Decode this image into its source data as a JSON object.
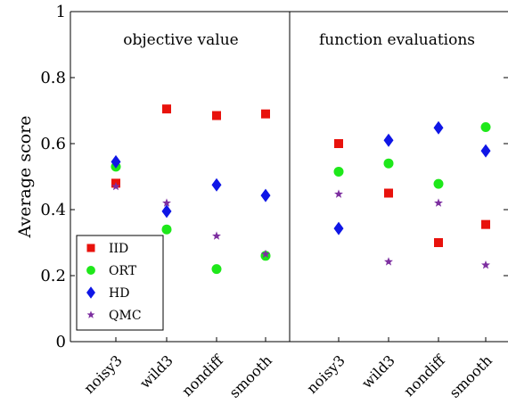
{
  "chart_data": {
    "type": "scatter",
    "ylabel": "Average score",
    "ylim": [
      0,
      1
    ],
    "yticks": [
      "0",
      "0.2",
      "0.4",
      "0.6",
      "0.8",
      "1"
    ],
    "panels": [
      {
        "title": "objective value",
        "categories": [
          "noisy3",
          "wild3",
          "nondiff",
          "smooth"
        ],
        "series": [
          {
            "name": "IID",
            "values": [
              0.48,
              0.705,
              0.685,
              0.69
            ]
          },
          {
            "name": "ORT",
            "values": [
              0.53,
              0.34,
              0.22,
              0.26
            ]
          },
          {
            "name": "HD",
            "values": [
              0.545,
              0.395,
              0.475,
              0.443
            ]
          },
          {
            "name": "QMC",
            "values": [
              0.47,
              0.42,
              0.32,
              0.265
            ]
          }
        ]
      },
      {
        "title": "function evaluations",
        "categories": [
          "noisy3",
          "wild3",
          "nondiff",
          "smooth"
        ],
        "series": [
          {
            "name": "IID",
            "values": [
              0.6,
              0.45,
              0.3,
              0.355
            ]
          },
          {
            "name": "ORT",
            "values": [
              0.515,
              0.54,
              0.478,
              0.65
            ]
          },
          {
            "name": "HD",
            "values": [
              0.343,
              0.61,
              0.648,
              0.578
            ]
          },
          {
            "name": "QMC",
            "values": [
              0.447,
              0.242,
              0.42,
              0.232
            ]
          }
        ]
      }
    ],
    "legend": {
      "placement": "lower-left",
      "entries": [
        "IID",
        "ORT",
        "HD",
        "QMC"
      ]
    },
    "grid": false,
    "colors": {
      "IID": "#e8120c",
      "ORT": "#1ee81a",
      "HD": "#0f16e6",
      "QMC": "#7d2fa0"
    },
    "markers": {
      "IID": "square",
      "ORT": "circle",
      "HD": "diamond",
      "QMC": "star"
    }
  }
}
